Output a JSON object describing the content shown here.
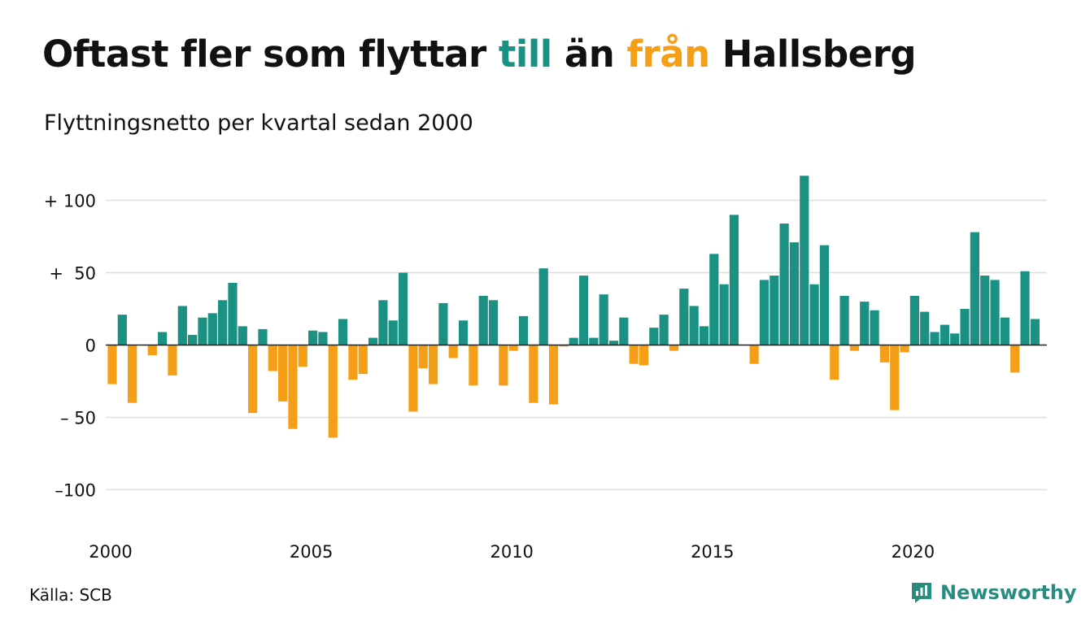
{
  "title": {
    "part1": "Oftast fler som flyttar ",
    "highlight_to": "till",
    "part2": " än ",
    "highlight_from": "från",
    "part3": " Hallsberg"
  },
  "subtitle": "Flyttningsnetto per kvartal sedan 2000",
  "source": "Källa: SCB",
  "brand": {
    "name": "Newsworthy",
    "icon": "bar-chart-speech-bubble-icon"
  },
  "colors": {
    "positive": "#1b9183",
    "negative": "#f59e18",
    "grid": "#dedede",
    "zero_line": "#222222"
  },
  "chart_data": {
    "type": "bar",
    "title": "Oftast fler som flyttar till än från Hallsberg",
    "subtitle": "Flyttningsnetto per kvartal sedan 2000",
    "x_start_year": 2000,
    "periods_per_year": 4,
    "xticks": [
      "2000",
      "2005",
      "2010",
      "2015",
      "2020"
    ],
    "yticks": [
      {
        "value": 100,
        "label": "+ 100"
      },
      {
        "value": 50,
        "label": "+  50"
      },
      {
        "value": 0,
        "label": "0"
      },
      {
        "value": -50,
        "label": "– 50"
      },
      {
        "value": -100,
        "label": "–100"
      }
    ],
    "ylim": [
      -125,
      125
    ],
    "grid": true,
    "values": [
      -27,
      21,
      -40,
      0,
      -7,
      9,
      -21,
      27,
      7,
      19,
      22,
      31,
      43,
      13,
      -47,
      11,
      -18,
      -39,
      -58,
      -15,
      10,
      9,
      -64,
      18,
      -24,
      -20,
      5,
      31,
      17,
      50,
      -46,
      -16,
      -27,
      29,
      -9,
      17,
      -28,
      34,
      31,
      -28,
      -4,
      20,
      -40,
      53,
      -41,
      -1,
      5,
      48,
      5,
      35,
      3,
      19,
      -13,
      -14,
      12,
      21,
      -4,
      39,
      27,
      13,
      63,
      42,
      90,
      0,
      -13,
      45,
      48,
      84,
      71,
      117,
      42,
      69,
      -24,
      34,
      -4,
      30,
      24,
      -12,
      -45,
      -5,
      34,
      23,
      9,
      14,
      8,
      25,
      78,
      48,
      45,
      19,
      -19,
      51,
      18
    ]
  }
}
